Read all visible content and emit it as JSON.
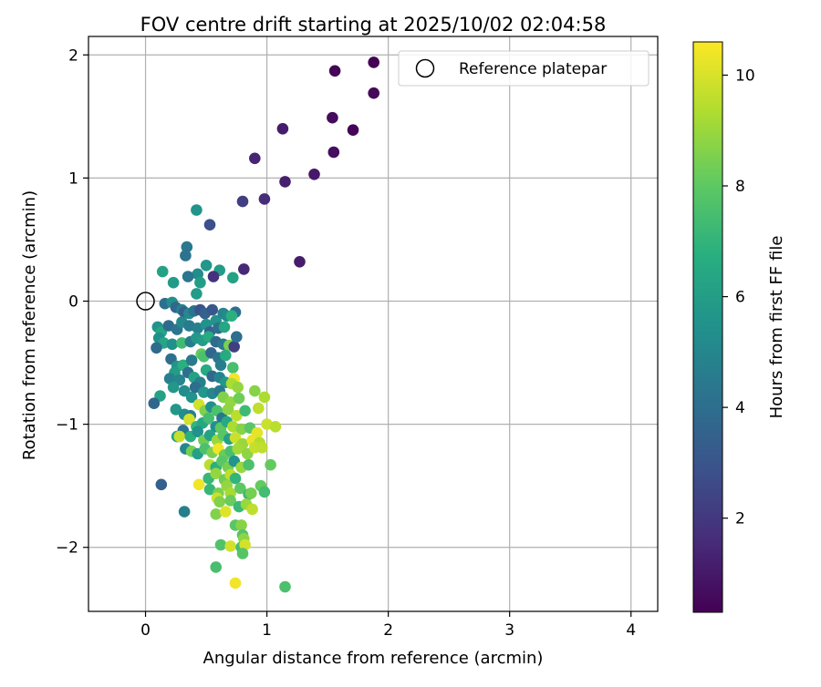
{
  "chart_data": {
    "type": "scatter",
    "title": "FOV centre drift starting at 2025/10/02 02:04:58",
    "xlabel": "Angular distance from reference (arcmin)",
    "ylabel": "Rotation from reference (arcmin)",
    "xlim": [
      -0.47,
      4.22
    ],
    "ylim": [
      -2.52,
      2.15
    ],
    "x_ticks": [
      0,
      1,
      2,
      3,
      4
    ],
    "y_ticks": [
      -2,
      -1,
      0,
      1,
      2
    ],
    "x_tick_labels": [
      "0",
      "1",
      "2",
      "3",
      "4"
    ],
    "y_tick_labels": [
      "−2",
      "−1",
      "0",
      "1",
      "2"
    ],
    "grid": true,
    "legend": {
      "position": "top-right",
      "entries": [
        "Reference platepar"
      ]
    },
    "reference_point": {
      "name": "Reference platepar",
      "x": 0,
      "y": 0
    },
    "colorbar": {
      "label": "Hours from first FF file",
      "colormap": "viridis",
      "range": [
        0.3,
        10.6
      ],
      "ticks": [
        2,
        4,
        6,
        8,
        10
      ],
      "tick_labels": [
        "2",
        "4",
        "6",
        "8",
        "10"
      ]
    },
    "colormap_stops": [
      "#440154",
      "#472c7a",
      "#3b528b",
      "#2c728e",
      "#21918c",
      "#28ae80",
      "#5ec962",
      "#addc30",
      "#fde725"
    ],
    "series": [
      {
        "columns": [
          "x",
          "y",
          "hours"
        ],
        "points": [
          [
            1.88,
            1.94,
            0.3
          ],
          [
            1.56,
            1.87,
            0.4
          ],
          [
            1.88,
            1.69,
            0.5
          ],
          [
            1.54,
            1.49,
            0.6
          ],
          [
            1.71,
            1.39,
            0.4
          ],
          [
            1.13,
            1.4,
            1.1
          ],
          [
            1.55,
            1.21,
            0.7
          ],
          [
            0.9,
            1.16,
            1.4
          ],
          [
            1.39,
            1.03,
            1.0
          ],
          [
            1.15,
            0.97,
            1.2
          ],
          [
            0.98,
            0.83,
            1.6
          ],
          [
            0.8,
            0.81,
            2.2
          ],
          [
            1.27,
            0.32,
            1.1
          ],
          [
            0.81,
            0.26,
            1.5
          ],
          [
            0.53,
            0.62,
            2.8
          ],
          [
            0.42,
            0.74,
            5.6
          ],
          [
            0.34,
            0.44,
            4.4
          ],
          [
            0.33,
            0.37,
            4.2
          ],
          [
            0.14,
            0.24,
            6.2
          ],
          [
            0.43,
            0.22,
            5.3
          ],
          [
            0.5,
            0.29,
            5.7
          ],
          [
            0.61,
            0.25,
            5.9
          ],
          [
            0.56,
            0.2,
            1.8
          ],
          [
            0.72,
            0.19,
            6.2
          ],
          [
            0.35,
            0.2,
            4.3
          ],
          [
            0.23,
            0.15,
            5.9
          ],
          [
            0.45,
            0.15,
            6.0
          ],
          [
            0.42,
            0.06,
            5.9
          ],
          [
            0.16,
            -0.02,
            4.1
          ],
          [
            0.22,
            -0.01,
            5.4
          ],
          [
            0.25,
            -0.05,
            3.8
          ],
          [
            0.3,
            -0.07,
            4.8
          ],
          [
            0.32,
            -0.09,
            3.4
          ],
          [
            0.36,
            -0.1,
            5.1
          ],
          [
            0.4,
            -0.08,
            4.2
          ],
          [
            0.45,
            -0.07,
            2.9
          ],
          [
            0.49,
            -0.1,
            3.5
          ],
          [
            0.55,
            -0.07,
            3.1
          ],
          [
            0.58,
            -0.16,
            5.6
          ],
          [
            0.64,
            -0.1,
            4.9
          ],
          [
            0.67,
            -0.12,
            5.2
          ],
          [
            0.74,
            -0.09,
            4.0
          ],
          [
            0.71,
            -0.12,
            6.8
          ],
          [
            0.1,
            -0.21,
            5.6
          ],
          [
            0.13,
            -0.25,
            6.3
          ],
          [
            0.19,
            -0.2,
            3.9
          ],
          [
            0.26,
            -0.23,
            4.3
          ],
          [
            0.3,
            -0.17,
            5.1
          ],
          [
            0.36,
            -0.2,
            4.5
          ],
          [
            0.43,
            -0.22,
            4.8
          ],
          [
            0.5,
            -0.19,
            5.5
          ],
          [
            0.53,
            -0.25,
            3.6
          ],
          [
            0.6,
            -0.22,
            4.0
          ],
          [
            0.65,
            -0.21,
            6.4
          ],
          [
            0.11,
            -0.3,
            5.4
          ],
          [
            0.15,
            -0.34,
            6.3
          ],
          [
            0.22,
            -0.35,
            5.4
          ],
          [
            0.3,
            -0.34,
            7.3
          ],
          [
            0.37,
            -0.33,
            4.6
          ],
          [
            0.42,
            -0.3,
            5.7
          ],
          [
            0.47,
            -0.32,
            6.0
          ],
          [
            0.52,
            -0.29,
            6.6
          ],
          [
            0.58,
            -0.33,
            3.9
          ],
          [
            0.64,
            -0.35,
            4.4
          ],
          [
            0.69,
            -0.36,
            8.5
          ],
          [
            0.73,
            -0.37,
            2.2
          ],
          [
            0.75,
            -0.29,
            4.0
          ],
          [
            0.09,
            -0.38,
            3.9
          ],
          [
            0.21,
            -0.47,
            4.1
          ],
          [
            0.26,
            -0.53,
            5.6
          ],
          [
            0.31,
            -0.52,
            6.8
          ],
          [
            0.38,
            -0.48,
            4.5
          ],
          [
            0.46,
            -0.43,
            8.1
          ],
          [
            0.48,
            -0.45,
            7.6
          ],
          [
            0.54,
            -0.42,
            3.7
          ],
          [
            0.6,
            -0.46,
            4.3
          ],
          [
            0.62,
            -0.52,
            4.7
          ],
          [
            0.66,
            -0.44,
            6.5
          ],
          [
            0.24,
            -0.58,
            6.0
          ],
          [
            0.2,
            -0.63,
            4.8
          ],
          [
            0.28,
            -0.64,
            5.0
          ],
          [
            0.35,
            -0.58,
            4.1
          ],
          [
            0.4,
            -0.62,
            6.2
          ],
          [
            0.45,
            -0.66,
            4.8
          ],
          [
            0.5,
            -0.56,
            6.5
          ],
          [
            0.55,
            -0.61,
            3.8
          ],
          [
            0.61,
            -0.62,
            4.9
          ],
          [
            0.66,
            -0.66,
            5.7
          ],
          [
            0.72,
            -0.54,
            7.5
          ],
          [
            0.73,
            -0.63,
            10.4
          ],
          [
            0.71,
            -0.67,
            9.3
          ],
          [
            0.76,
            -0.7,
            8.9
          ],
          [
            0.9,
            -0.73,
            8.7
          ],
          [
            0.98,
            -0.78,
            9.3
          ],
          [
            0.23,
            -0.7,
            5.7
          ],
          [
            0.32,
            -0.73,
            5.3
          ],
          [
            0.38,
            -0.78,
            5.5
          ],
          [
            0.41,
            -0.7,
            4.0
          ],
          [
            0.48,
            -0.74,
            5.7
          ],
          [
            0.55,
            -0.75,
            5.0
          ],
          [
            0.61,
            -0.73,
            4.4
          ],
          [
            0.64,
            -0.78,
            8.6
          ],
          [
            0.7,
            -0.82,
            8.9
          ],
          [
            0.77,
            -0.79,
            8.3
          ],
          [
            0.12,
            -0.77,
            6.2
          ],
          [
            0.07,
            -0.83,
            3.7
          ],
          [
            0.25,
            -0.88,
            5.7
          ],
          [
            0.32,
            -0.92,
            5.3
          ],
          [
            0.37,
            -0.93,
            4.8
          ],
          [
            0.44,
            -0.84,
            9.9
          ],
          [
            0.49,
            -0.89,
            8.6
          ],
          [
            0.54,
            -0.86,
            5.4
          ],
          [
            0.59,
            -0.89,
            7.6
          ],
          [
            0.63,
            -0.95,
            4.3
          ],
          [
            0.68,
            -0.88,
            8.8
          ],
          [
            0.75,
            -0.93,
            9.5
          ],
          [
            0.82,
            -0.89,
            7.3
          ],
          [
            0.93,
            -0.87,
            9.6
          ],
          [
            0.36,
            -0.96,
            9.9
          ],
          [
            0.42,
            -1.02,
            7.0
          ],
          [
            0.47,
            -0.99,
            6.4
          ],
          [
            0.52,
            -0.95,
            7.4
          ],
          [
            0.58,
            -1.02,
            5.4
          ],
          [
            0.62,
            -1.03,
            8.0
          ],
          [
            0.67,
            -0.98,
            6.5
          ],
          [
            0.72,
            -1.02,
            9.3
          ],
          [
            0.79,
            -1.04,
            8.7
          ],
          [
            0.86,
            -1.03,
            7.9
          ],
          [
            0.92,
            -1.07,
            10.2
          ],
          [
            1.0,
            -1.0,
            9.8
          ],
          [
            1.07,
            -1.02,
            9.5
          ],
          [
            0.31,
            -1.05,
            4.3
          ],
          [
            0.26,
            -1.1,
            6.1
          ],
          [
            0.28,
            -1.1,
            9.7
          ],
          [
            0.37,
            -1.1,
            6.8
          ],
          [
            0.43,
            -1.06,
            5.5
          ],
          [
            0.48,
            -1.13,
            8.3
          ],
          [
            0.53,
            -1.09,
            6.2
          ],
          [
            0.59,
            -1.13,
            9.0
          ],
          [
            0.64,
            -1.09,
            7.9
          ],
          [
            0.69,
            -1.12,
            6.1
          ],
          [
            0.74,
            -1.11,
            9.8
          ],
          [
            0.8,
            -1.16,
            9.0
          ],
          [
            0.88,
            -1.13,
            10.3
          ],
          [
            0.94,
            -1.15,
            9.4
          ],
          [
            0.33,
            -1.2,
            5.0
          ],
          [
            0.38,
            -1.22,
            8.4
          ],
          [
            0.43,
            -1.24,
            6.1
          ],
          [
            0.49,
            -1.2,
            7.6
          ],
          [
            0.55,
            -1.23,
            8.5
          ],
          [
            0.6,
            -1.2,
            10.4
          ],
          [
            0.65,
            -1.25,
            8.2
          ],
          [
            0.7,
            -1.22,
            7.5
          ],
          [
            0.76,
            -1.2,
            9.1
          ],
          [
            0.84,
            -1.24,
            8.8
          ],
          [
            0.9,
            -1.19,
            9.7
          ],
          [
            0.96,
            -1.19,
            9.6
          ],
          [
            0.53,
            -1.33,
            9.5
          ],
          [
            0.58,
            -1.35,
            6.8
          ],
          [
            0.63,
            -1.3,
            7.9
          ],
          [
            0.68,
            -1.35,
            8.4
          ],
          [
            0.73,
            -1.3,
            5.6
          ],
          [
            0.79,
            -1.35,
            9.0
          ],
          [
            0.85,
            -1.33,
            7.6
          ],
          [
            1.03,
            -1.33,
            8.1
          ],
          [
            0.52,
            -1.44,
            7.1
          ],
          [
            0.58,
            -1.4,
            8.9
          ],
          [
            0.65,
            -1.45,
            8.3
          ],
          [
            0.7,
            -1.41,
            9.6
          ],
          [
            0.74,
            -1.44,
            7.0
          ],
          [
            0.13,
            -1.49,
            3.4
          ],
          [
            0.44,
            -1.49,
            10.4
          ],
          [
            0.53,
            -1.53,
            7.1
          ],
          [
            0.6,
            -1.56,
            8.5
          ],
          [
            0.67,
            -1.5,
            8.9
          ],
          [
            0.7,
            -1.56,
            9.2
          ],
          [
            0.78,
            -1.52,
            8.0
          ],
          [
            0.85,
            -1.57,
            7.3
          ],
          [
            0.87,
            -1.56,
            8.4
          ],
          [
            0.95,
            -1.5,
            8.1
          ],
          [
            0.98,
            -1.55,
            7.4
          ],
          [
            0.59,
            -1.6,
            9.8
          ],
          [
            0.61,
            -1.63,
            8.6
          ],
          [
            0.7,
            -1.62,
            8.2
          ],
          [
            0.77,
            -1.67,
            7.2
          ],
          [
            0.83,
            -1.65,
            9.0
          ],
          [
            0.88,
            -1.69,
            9.6
          ],
          [
            0.32,
            -1.71,
            4.7
          ],
          [
            0.58,
            -1.73,
            8.6
          ],
          [
            0.66,
            -1.71,
            10.1
          ],
          [
            0.74,
            -1.82,
            7.9
          ],
          [
            0.79,
            -1.82,
            8.7
          ],
          [
            0.8,
            -1.9,
            7.8
          ],
          [
            0.81,
            -1.93,
            8.8
          ],
          [
            0.62,
            -1.98,
            7.7
          ],
          [
            0.7,
            -1.99,
            9.9
          ],
          [
            0.79,
            -2.0,
            7.4
          ],
          [
            0.82,
            -1.98,
            9.9
          ],
          [
            0.8,
            -2.05,
            7.8
          ],
          [
            0.58,
            -2.16,
            7.5
          ],
          [
            0.74,
            -2.29,
            10.4
          ],
          [
            1.15,
            -2.32,
            7.6
          ]
        ]
      }
    ]
  }
}
